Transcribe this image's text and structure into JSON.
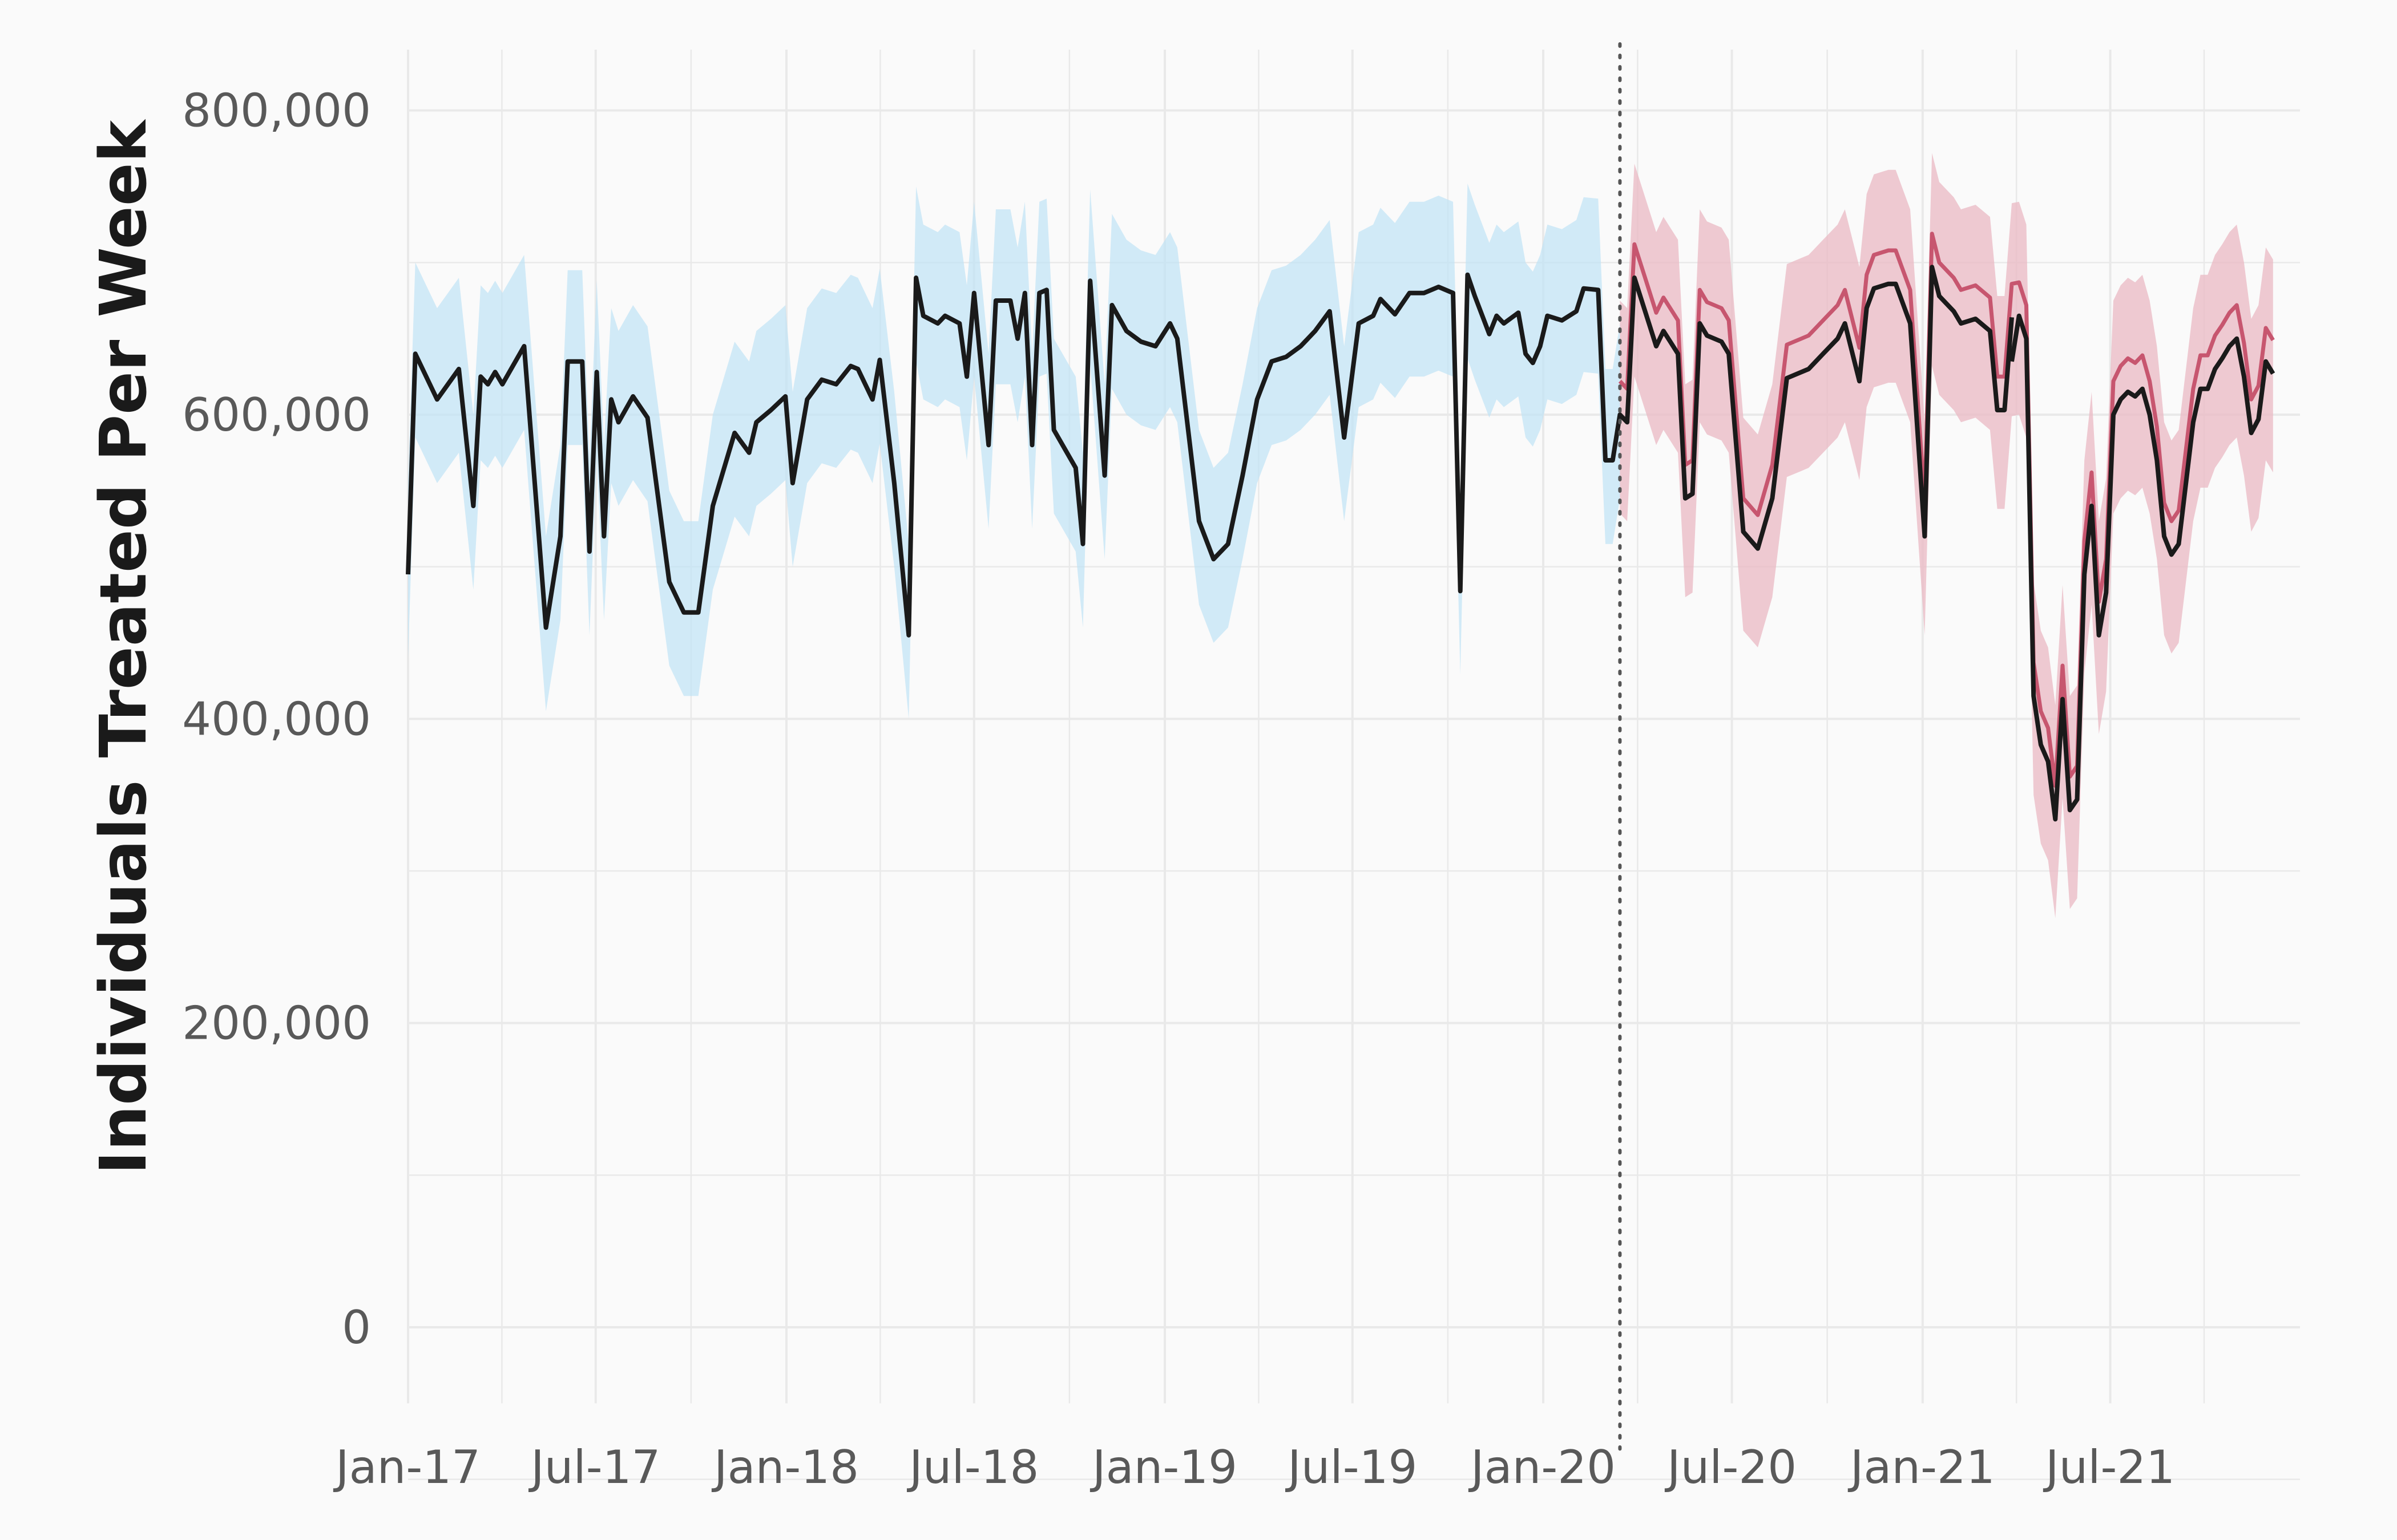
{
  "chart_data": {
    "type": "line",
    "title": "",
    "xlabel": "",
    "ylabel": "Individuals Treated Per Week",
    "xlim": [
      "2017-01-01",
      "2021-12-31"
    ],
    "ylim": [
      -50000,
      840000
    ],
    "y_ticks": [
      0,
      200000,
      400000,
      600000,
      800000
    ],
    "y_tick_labels": [
      "0",
      "200,000",
      "400,000",
      "600,000",
      "800,000"
    ],
    "x_ticks": [
      "2017-01-01",
      "2017-07-01",
      "2018-01-01",
      "2018-07-01",
      "2019-01-01",
      "2019-07-01",
      "2020-01-01",
      "2020-07-01",
      "2021-01-01",
      "2021-07-01"
    ],
    "x_tick_labels": [
      "Jan-17",
      "Jul-17",
      "Jan-18",
      "Jul-18",
      "Jan-19",
      "Jul-19",
      "Jan-20",
      "Jul-20",
      "Jan-21",
      "Jul-21"
    ],
    "grid": true,
    "legend": "none",
    "cutoff_date": "2020-03-15",
    "colors": {
      "background": "#fafafa",
      "grid": "#e9e9e9",
      "observed": "#1a1a1a",
      "fitted": "#7ec8ea",
      "fitted_band": "#bfe3f5",
      "forecast": "#c7566f",
      "forecast_band": "#eab8c3",
      "cutoff_line": "#555555"
    },
    "series": [
      {
        "role": "observed",
        "points": [
          [
            "2017-01-01",
            495000
          ],
          [
            "2017-01-08",
            640000
          ],
          [
            "2017-01-29",
            610000
          ],
          [
            "2017-02-19",
            630000
          ],
          [
            "2017-03-05",
            540000
          ],
          [
            "2017-03-12",
            625000
          ],
          [
            "2017-03-19",
            620000
          ],
          [
            "2017-03-26",
            628000
          ],
          [
            "2017-04-02",
            620000
          ],
          [
            "2017-04-23",
            645000
          ],
          [
            "2017-05-14",
            460000
          ],
          [
            "2017-05-28",
            520000
          ],
          [
            "2017-06-04",
            635000
          ],
          [
            "2017-06-18",
            635000
          ],
          [
            "2017-06-25",
            510000
          ],
          [
            "2017-07-02",
            628000
          ],
          [
            "2017-07-09",
            520000
          ],
          [
            "2017-07-16",
            610000
          ],
          [
            "2017-07-23",
            595000
          ],
          [
            "2017-08-06",
            612000
          ],
          [
            "2017-08-20",
            598000
          ],
          [
            "2017-09-10",
            490000
          ],
          [
            "2017-09-24",
            470000
          ],
          [
            "2017-10-08",
            470000
          ],
          [
            "2017-10-22",
            540000
          ],
          [
            "2017-11-12",
            588000
          ],
          [
            "2017-11-26",
            575000
          ],
          [
            "2017-12-03",
            595000
          ],
          [
            "2017-12-17",
            603000
          ],
          [
            "2017-12-31",
            612000
          ],
          [
            "2018-01-07",
            555000
          ],
          [
            "2018-01-21",
            610000
          ],
          [
            "2018-02-04",
            623000
          ],
          [
            "2018-02-18",
            620000
          ],
          [
            "2018-03-04",
            632000
          ],
          [
            "2018-03-11",
            630000
          ],
          [
            "2018-03-25",
            610000
          ],
          [
            "2018-04-01",
            636000
          ],
          [
            "2018-04-15",
            555000
          ],
          [
            "2018-04-29",
            455000
          ],
          [
            "2018-05-06",
            690000
          ],
          [
            "2018-05-13",
            665000
          ],
          [
            "2018-05-27",
            660000
          ],
          [
            "2018-06-03",
            665000
          ],
          [
            "2018-06-17",
            660000
          ],
          [
            "2018-06-24",
            625000
          ],
          [
            "2018-07-01",
            680000
          ],
          [
            "2018-07-15",
            580000
          ],
          [
            "2018-07-22",
            675000
          ],
          [
            "2018-08-05",
            675000
          ],
          [
            "2018-08-12",
            650000
          ],
          [
            "2018-08-19",
            680000
          ],
          [
            "2018-08-26",
            580000
          ],
          [
            "2018-09-02",
            680000
          ],
          [
            "2018-09-09",
            682000
          ],
          [
            "2018-09-16",
            590000
          ],
          [
            "2018-10-07",
            565000
          ],
          [
            "2018-10-14",
            515000
          ],
          [
            "2018-10-21",
            688000
          ],
          [
            "2018-11-04",
            560000
          ],
          [
            "2018-11-11",
            672000
          ],
          [
            "2018-11-25",
            655000
          ],
          [
            "2018-12-09",
            648000
          ],
          [
            "2018-12-23",
            645000
          ],
          [
            "2019-01-06",
            660000
          ],
          [
            "2019-01-13",
            650000
          ],
          [
            "2019-02-03",
            530000
          ],
          [
            "2019-02-17",
            505000
          ],
          [
            "2019-03-03",
            515000
          ],
          [
            "2019-03-17",
            560000
          ],
          [
            "2019-03-31",
            610000
          ],
          [
            "2019-04-14",
            635000
          ],
          [
            "2019-04-28",
            638000
          ],
          [
            "2019-05-12",
            645000
          ],
          [
            "2019-05-26",
            655000
          ],
          [
            "2019-06-09",
            668000
          ],
          [
            "2019-06-23",
            585000
          ],
          [
            "2019-07-07",
            660000
          ],
          [
            "2019-07-21",
            665000
          ],
          [
            "2019-07-28",
            676000
          ],
          [
            "2019-08-11",
            666000
          ],
          [
            "2019-08-25",
            680000
          ],
          [
            "2019-09-08",
            680000
          ],
          [
            "2019-09-22",
            684000
          ],
          [
            "2019-10-06",
            680000
          ],
          [
            "2019-10-13",
            484000
          ],
          [
            "2019-10-20",
            692000
          ],
          [
            "2019-10-27",
            678000
          ],
          [
            "2019-11-10",
            653000
          ],
          [
            "2019-11-17",
            665000
          ],
          [
            "2019-11-24",
            660000
          ],
          [
            "2019-12-08",
            667000
          ],
          [
            "2019-12-15",
            640000
          ],
          [
            "2019-12-22",
            634000
          ],
          [
            "2019-12-29",
            645000
          ],
          [
            "2020-01-05",
            665000
          ],
          [
            "2020-01-19",
            662000
          ],
          [
            "2020-02-02",
            668000
          ],
          [
            "2020-02-09",
            683000
          ],
          [
            "2020-02-23",
            682000
          ],
          [
            "2020-03-01",
            570000
          ],
          [
            "2020-03-08",
            570000
          ],
          [
            "2020-03-15",
            600000
          ],
          [
            "2020-03-22",
            595000
          ],
          [
            "2020-03-29",
            690000
          ],
          [
            "2020-04-12",
            660000
          ],
          [
            "2020-04-19",
            645000
          ],
          [
            "2020-04-26",
            655000
          ],
          [
            "2020-05-10",
            640000
          ],
          [
            "2020-05-17",
            545000
          ],
          [
            "2020-05-24",
            548000
          ],
          [
            "2020-05-31",
            660000
          ],
          [
            "2020-06-07",
            652000
          ],
          [
            "2020-06-21",
            648000
          ],
          [
            "2020-06-28",
            640000
          ],
          [
            "2020-07-12",
            523000
          ],
          [
            "2020-07-26",
            512000
          ],
          [
            "2020-08-09",
            545000
          ],
          [
            "2020-08-23",
            624000
          ],
          [
            "2020-09-06",
            628000
          ],
          [
            "2020-09-13",
            630000
          ],
          [
            "2020-09-27",
            640000
          ],
          [
            "2020-10-11",
            650000
          ],
          [
            "2020-10-18",
            660000
          ],
          [
            "2020-11-01",
            622000
          ],
          [
            "2020-11-08",
            670000
          ],
          [
            "2020-11-15",
            683000
          ],
          [
            "2020-11-29",
            686000
          ],
          [
            "2020-12-06",
            686000
          ],
          [
            "2020-12-20",
            660000
          ],
          [
            "2021-01-03",
            520000
          ],
          [
            "2021-01-10",
            697000
          ],
          [
            "2021-01-17",
            678000
          ],
          [
            "2021-01-31",
            668000
          ],
          [
            "2021-02-07",
            660000
          ],
          [
            "2021-02-21",
            663000
          ],
          [
            "2021-03-07",
            655000
          ],
          [
            "2021-03-14",
            603000
          ],
          [
            "2021-03-21",
            603000
          ],
          [
            "2021-03-28",
            664000
          ]
        ]
      },
      {
        "role": "observed",
        "points": [
          [
            "2021-03-28",
            635000
          ],
          [
            "2021-04-04",
            665000
          ],
          [
            "2021-04-11",
            650000
          ],
          [
            "2021-04-18",
            415000
          ],
          [
            "2021-04-25",
            383000
          ],
          [
            "2021-05-02",
            372000
          ],
          [
            "2021-05-09",
            334000
          ],
          [
            "2021-05-16",
            413000
          ],
          [
            "2021-05-23",
            340000
          ],
          [
            "2021-05-30",
            347000
          ],
          [
            "2021-06-06",
            495000
          ],
          [
            "2021-06-13",
            540000
          ],
          [
            "2021-06-20",
            455000
          ],
          [
            "2021-06-27",
            483000
          ],
          [
            "2021-07-04",
            600000
          ],
          [
            "2021-07-11",
            610000
          ],
          [
            "2021-07-18",
            615000
          ],
          [
            "2021-07-25",
            612000
          ],
          [
            "2021-08-01",
            617000
          ],
          [
            "2021-08-08",
            600000
          ],
          [
            "2021-08-15",
            570000
          ],
          [
            "2021-08-22",
            520000
          ],
          [
            "2021-08-29",
            508000
          ],
          [
            "2021-09-05",
            515000
          ],
          [
            "2021-09-12",
            555000
          ],
          [
            "2021-09-19",
            595000
          ],
          [
            "2021-09-26",
            617000
          ],
          [
            "2021-10-03",
            617000
          ],
          [
            "2021-10-10",
            630000
          ],
          [
            "2021-10-17",
            637000
          ],
          [
            "2021-10-24",
            645000
          ],
          [
            "2021-10-31",
            650000
          ],
          [
            "2021-11-07",
            625000
          ],
          [
            "2021-11-14",
            588000
          ],
          [
            "2021-11-21",
            597000
          ],
          [
            "2021-11-28",
            635000
          ],
          [
            "2021-12-05",
            627000
          ]
        ]
      }
    ]
  }
}
